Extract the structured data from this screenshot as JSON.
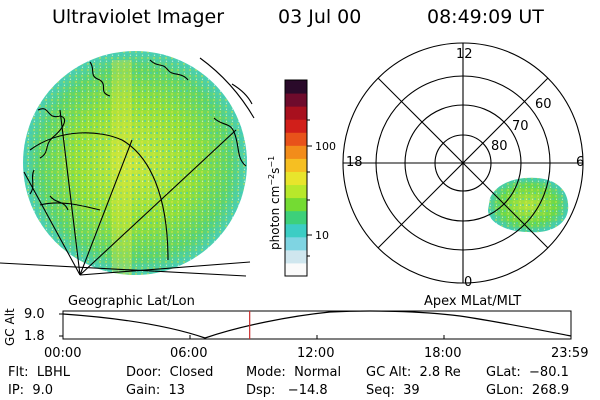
{
  "header": {
    "title": "Ultraviolet Imager",
    "date": "03 Jul 00",
    "time": "08:49:09 UT"
  },
  "geo_panel": {
    "label": "Geographic Lat/Lon"
  },
  "mlt_panel": {
    "label": "Apex MLat/MLT",
    "hour_labels": {
      "top": "12",
      "left": "18",
      "right": "6",
      "bottom": "0"
    },
    "lat_labels": [
      "60",
      "70",
      "80"
    ]
  },
  "colorbar": {
    "unit_label": "photon cm-2 s-1",
    "tick_labels": [
      "100",
      "10"
    ],
    "colors": [
      "#fafafa",
      "#cfe6ee",
      "#7fd4e2",
      "#3ccdc4",
      "#3dd07a",
      "#74db33",
      "#b8e82b",
      "#e8e52c",
      "#f6bf22",
      "#f28c1a",
      "#e8521a",
      "#d11f1a",
      "#a8101e",
      "#6e0b2c",
      "#2a0a2a"
    ]
  },
  "gc_alt_plot": {
    "ylabel": "GC Alt",
    "y_ticks": [
      "9.0",
      "1.8"
    ],
    "x_ticks": [
      "00:00",
      "06:00",
      "12:00",
      "18:00",
      "23:59"
    ],
    "current_time_hours": 8.82
  },
  "status": {
    "flt": "Flt:  LBHL",
    "ip": "IP:  9.0",
    "door": "Door:  Closed",
    "gain": "Gain:  13",
    "mode": "Mode:  Normal",
    "dsp": "Dsp:   −14.8",
    "gc_alt": "GC Alt:  2.8 Re",
    "seq": "Seq:  39",
    "glat": "GLat:  −80.1",
    "glon": "GLon:  268.9"
  },
  "colors": {
    "geo_fill": "#7fdc3a",
    "geo_fill_edge": "#48cfb5",
    "mlt_fill": "#6edb3a",
    "current_time_marker": "#cc2a2a"
  }
}
